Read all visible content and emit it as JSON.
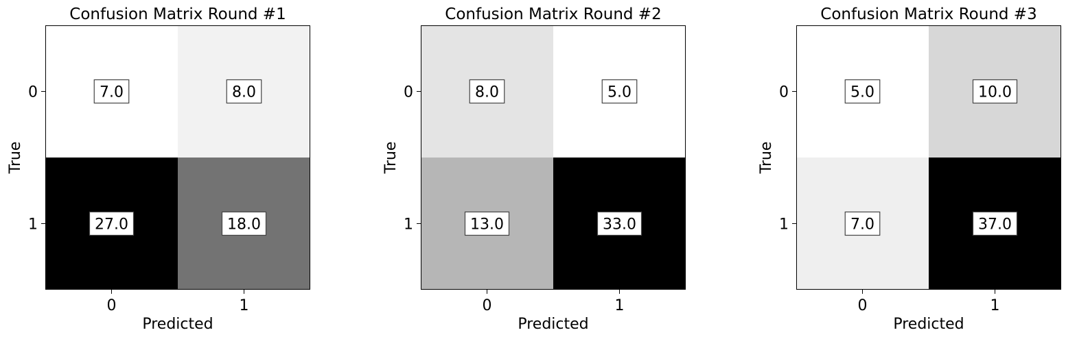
{
  "chart_data": [
    {
      "type": "heatmap",
      "title": "Confusion Matrix Round #1",
      "xlabel": "Predicted",
      "ylabel": "True",
      "x_categories": [
        "0",
        "1"
      ],
      "y_categories": [
        "0",
        "1"
      ],
      "values": [
        [
          7.0,
          8.0
        ],
        [
          27.0,
          18.0
        ]
      ],
      "colormap": "greys"
    },
    {
      "type": "heatmap",
      "title": "Confusion Matrix Round #2",
      "xlabel": "Predicted",
      "ylabel": "True",
      "x_categories": [
        "0",
        "1"
      ],
      "y_categories": [
        "0",
        "1"
      ],
      "values": [
        [
          8.0,
          5.0
        ],
        [
          13.0,
          33.0
        ]
      ],
      "colormap": "greys"
    },
    {
      "type": "heatmap",
      "title": "Confusion Matrix Round #3",
      "xlabel": "Predicted",
      "ylabel": "True",
      "x_categories": [
        "0",
        "1"
      ],
      "y_categories": [
        "0",
        "1"
      ],
      "values": [
        [
          5.0,
          10.0
        ],
        [
          7.0,
          37.0
        ]
      ],
      "colormap": "greys"
    }
  ]
}
